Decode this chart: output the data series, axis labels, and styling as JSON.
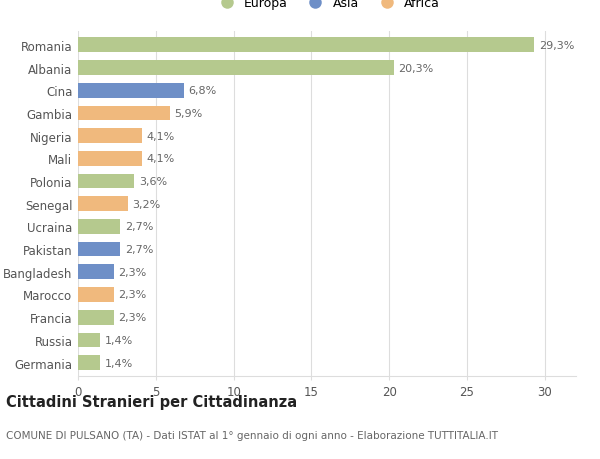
{
  "categories": [
    "Romania",
    "Albania",
    "Cina",
    "Gambia",
    "Nigeria",
    "Mali",
    "Polonia",
    "Senegal",
    "Ucraina",
    "Pakistan",
    "Bangladesh",
    "Marocco",
    "Francia",
    "Russia",
    "Germania"
  ],
  "values": [
    29.3,
    20.3,
    6.8,
    5.9,
    4.1,
    4.1,
    3.6,
    3.2,
    2.7,
    2.7,
    2.3,
    2.3,
    2.3,
    1.4,
    1.4
  ],
  "continents": [
    "Europa",
    "Europa",
    "Asia",
    "Africa",
    "Africa",
    "Africa",
    "Europa",
    "Africa",
    "Europa",
    "Asia",
    "Asia",
    "Africa",
    "Europa",
    "Europa",
    "Europa"
  ],
  "labels": [
    "29,3%",
    "20,3%",
    "6,8%",
    "5,9%",
    "4,1%",
    "4,1%",
    "3,6%",
    "3,2%",
    "2,7%",
    "2,7%",
    "2,3%",
    "2,3%",
    "2,3%",
    "1,4%",
    "1,4%"
  ],
  "colors": {
    "Europa": "#b5c98e",
    "Asia": "#6e8fc7",
    "Africa": "#f0b97d"
  },
  "legend_items": [
    "Europa",
    "Asia",
    "Africa"
  ],
  "title": "Cittadini Stranieri per Cittadinanza",
  "subtitle": "COMUNE DI PULSANO (TA) - Dati ISTAT al 1° gennaio di ogni anno - Elaborazione TUTTITALIA.IT",
  "xlim": [
    0,
    32
  ],
  "xticks": [
    0,
    5,
    10,
    15,
    20,
    25,
    30
  ],
  "background_color": "#ffffff",
  "bar_height": 0.65,
  "grid_color": "#dddddd",
  "label_color": "#666666",
  "title_fontsize": 10.5,
  "subtitle_fontsize": 7.5,
  "tick_fontsize": 8.5,
  "bar_label_fontsize": 8.0
}
